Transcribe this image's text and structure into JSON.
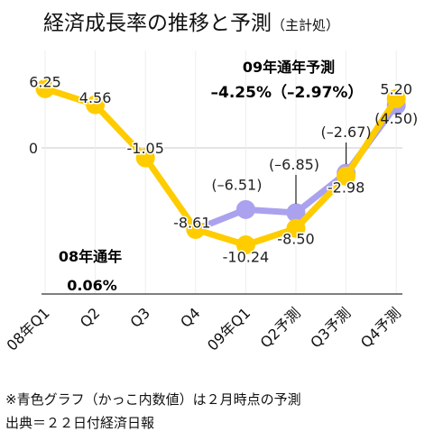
{
  "title": "経済成長率の推移と予測",
  "title_note": "（主計処）",
  "annotations": {
    "fy09_label": "09年通年予測",
    "fy09_value": "–4.25%（–2.97%）",
    "fy08_label": "08年通年",
    "fy08_value": "0.06%"
  },
  "footnotes": [
    "※青色グラフ（かっこ内数値）は２月時点の予測",
    "出典＝２２日付経済日報"
  ],
  "colors": {
    "current": "#FFCC00",
    "previous": "#AAA2EE",
    "grid": "#c8c8c8",
    "axis": "#333333"
  },
  "chart_data": {
    "type": "line",
    "categories": [
      "08年Q1",
      "Q2",
      "Q3",
      "Q4",
      "09年Q1",
      "Q2予測",
      "Q3予測",
      "Q4予測"
    ],
    "yticks": [
      {
        "value": 0,
        "label": "0"
      }
    ],
    "ylim": [
      -12,
      7
    ],
    "grid": true,
    "series": [
      {
        "key": "current",
        "values": [
          6.25,
          4.56,
          -1.05,
          -8.61,
          -10.24,
          -8.5,
          -2.98,
          5.2
        ],
        "labels": [
          "6.25",
          "4.56",
          "-1.05",
          "-8.61",
          "-10.24",
          "-8.50",
          "-2.98",
          "5.20"
        ]
      },
      {
        "key": "previous",
        "values": [
          null,
          null,
          null,
          -8.61,
          -6.51,
          -6.85,
          -2.67,
          4.5
        ],
        "labels": [
          "",
          "",
          "",
          "",
          "(–6.51)",
          "(–6.85)",
          "(–2.67)",
          "(4.50)"
        ]
      }
    ]
  }
}
